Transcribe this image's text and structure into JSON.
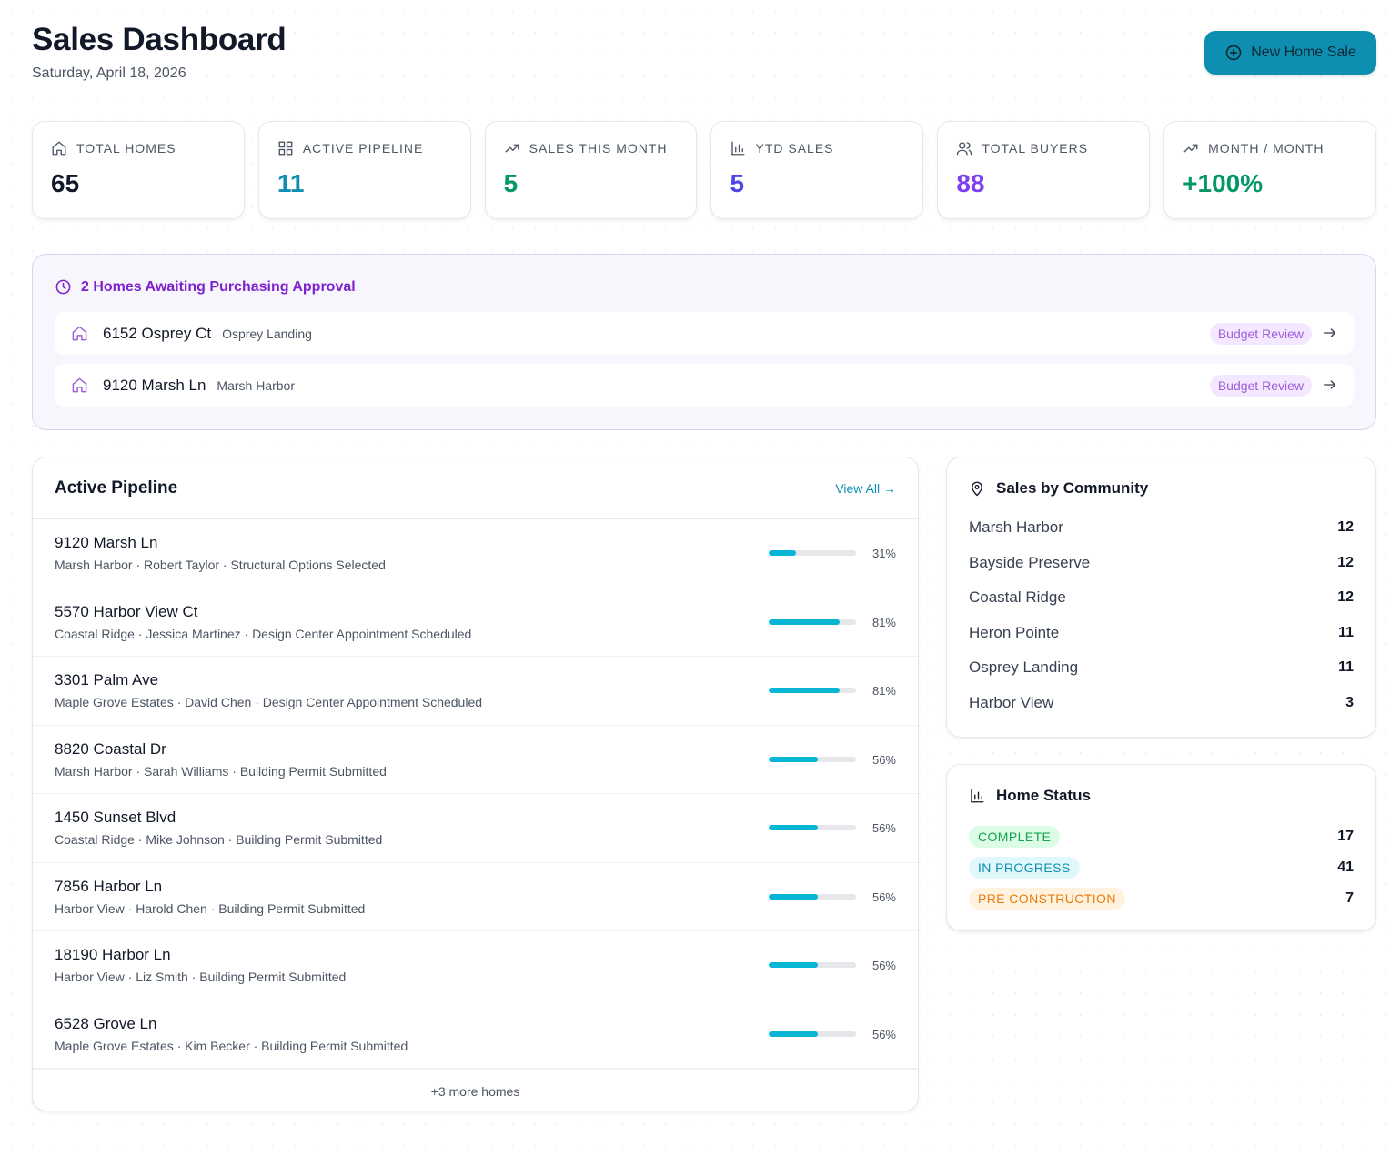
{
  "header": {
    "title": "Sales Dashboard",
    "date": "Saturday, April 18, 2026",
    "new_button": "New Home Sale"
  },
  "stats": [
    {
      "label": "TOTAL HOMES",
      "value": "65",
      "icon": "home-icon",
      "color": "#111827"
    },
    {
      "label": "ACTIVE PIPELINE",
      "value": "11",
      "icon": "grid-icon",
      "color": "#0e8fb1"
    },
    {
      "label": "SALES THIS MONTH",
      "value": "5",
      "icon": "trending-up-icon",
      "color": "#059669"
    },
    {
      "label": "YTD SALES",
      "value": "5",
      "icon": "bar-chart-icon",
      "color": "#4f46e5"
    },
    {
      "label": "TOTAL BUYERS",
      "value": "88",
      "icon": "users-icon",
      "color": "#7e3ff2"
    },
    {
      "label": "MONTH / MONTH",
      "value": "+100%",
      "icon": "trending-up-icon",
      "color": "#059669"
    }
  ],
  "approval": {
    "title": "2 Homes Awaiting Purchasing Approval",
    "items": [
      {
        "address": "6152 Osprey Ct",
        "community": "Osprey Landing",
        "badge": "Budget Review"
      },
      {
        "address": "9120 Marsh Ln",
        "community": "Marsh Harbor",
        "badge": "Budget Review"
      }
    ]
  },
  "pipeline": {
    "title": "Active Pipeline",
    "view_all": "View All →",
    "rows": [
      {
        "address": "9120 Marsh Ln",
        "meta": "Marsh Harbor · Robert Taylor · Structural Options Selected",
        "progress": 31,
        "progress_label": "31%"
      },
      {
        "address": "5570 Harbor View Ct",
        "meta": "Coastal Ridge · Jessica Martinez · Design Center Appointment Scheduled",
        "progress": 81,
        "progress_label": "81%"
      },
      {
        "address": "3301 Palm Ave",
        "meta": "Maple Grove Estates · David Chen · Design Center Appointment Scheduled",
        "progress": 81,
        "progress_label": "81%"
      },
      {
        "address": "8820 Coastal Dr",
        "meta": "Marsh Harbor · Sarah Williams · Building Permit Submitted",
        "progress": 56,
        "progress_label": "56%"
      },
      {
        "address": "1450 Sunset Blvd",
        "meta": "Coastal Ridge · Mike Johnson · Building Permit Submitted",
        "progress": 56,
        "progress_label": "56%"
      },
      {
        "address": "7856 Harbor Ln",
        "meta": "Harbor View · Harold Chen · Building Permit Submitted",
        "progress": 56,
        "progress_label": "56%"
      },
      {
        "address": "18190 Harbor Ln",
        "meta": "Harbor View · Liz Smith · Building Permit Submitted",
        "progress": 56,
        "progress_label": "56%"
      },
      {
        "address": "6528 Grove Ln",
        "meta": "Maple Grove Estates · Kim Becker · Building Permit Submitted",
        "progress": 56,
        "progress_label": "56%"
      }
    ],
    "more": "+3 more homes"
  },
  "community": {
    "title": "Sales by Community",
    "items": [
      {
        "name": "Marsh Harbor",
        "count": "12"
      },
      {
        "name": "Bayside Preserve",
        "count": "12"
      },
      {
        "name": "Coastal Ridge",
        "count": "12"
      },
      {
        "name": "Heron Pointe",
        "count": "11"
      },
      {
        "name": "Osprey Landing",
        "count": "11"
      },
      {
        "name": "Harbor View",
        "count": "3"
      }
    ]
  },
  "home_status": {
    "title": "Home Status",
    "items": [
      {
        "label": "COMPLETE",
        "count": "17",
        "bg": "#dcfce7",
        "fg": "#16a34a"
      },
      {
        "label": "IN PROGRESS",
        "count": "41",
        "bg": "#e0f7fb",
        "fg": "#0e8fb1"
      },
      {
        "label": "PRE CONSTRUCTION",
        "count": "7",
        "bg": "#fff3e0",
        "fg": "#ea7a0c"
      }
    ]
  }
}
